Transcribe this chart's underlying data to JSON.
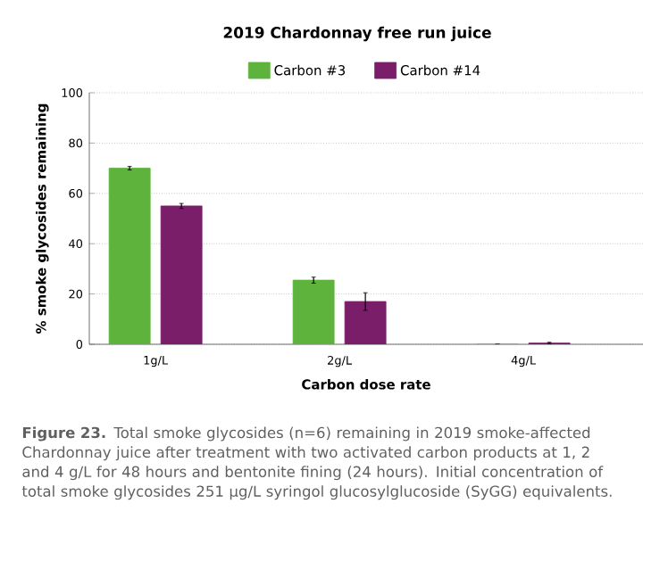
{
  "chart_data": {
    "type": "bar",
    "title": "2019 Chardonnay free run juice",
    "xlabel": "Carbon dose rate",
    "ylabel": "% smoke glycosides remaining",
    "categories": [
      "1g/L",
      "2g/L",
      "4g/L"
    ],
    "series": [
      {
        "name": "Carbon #3",
        "color": "#5db33b",
        "values": [
          70,
          25.5,
          0
        ],
        "errors": [
          0.7,
          1.2,
          null
        ]
      },
      {
        "name": "Carbon #14",
        "color": "#7a1e6a",
        "values": [
          55,
          17,
          0.5
        ],
        "errors": [
          1,
          3.5,
          0.3
        ]
      }
    ],
    "ylim": [
      0,
      100
    ],
    "yticks": [
      0,
      20,
      40,
      60,
      80,
      100
    ],
    "grid": "y",
    "legend": "top",
    "annotations": [
      "**Figure 23.** Total smoke glycosides (n=6) remaining in 2019 smoke-affected Chardonnay juice after treatment with two activated carbon products at 1, 2 and 4 g/L for 48 hours and bentonite fining (24 hours). Initial concentration of total smoke glycosides 251 µg/L syringol glucosylglucoside (SyGG) equivalents."
    ]
  }
}
